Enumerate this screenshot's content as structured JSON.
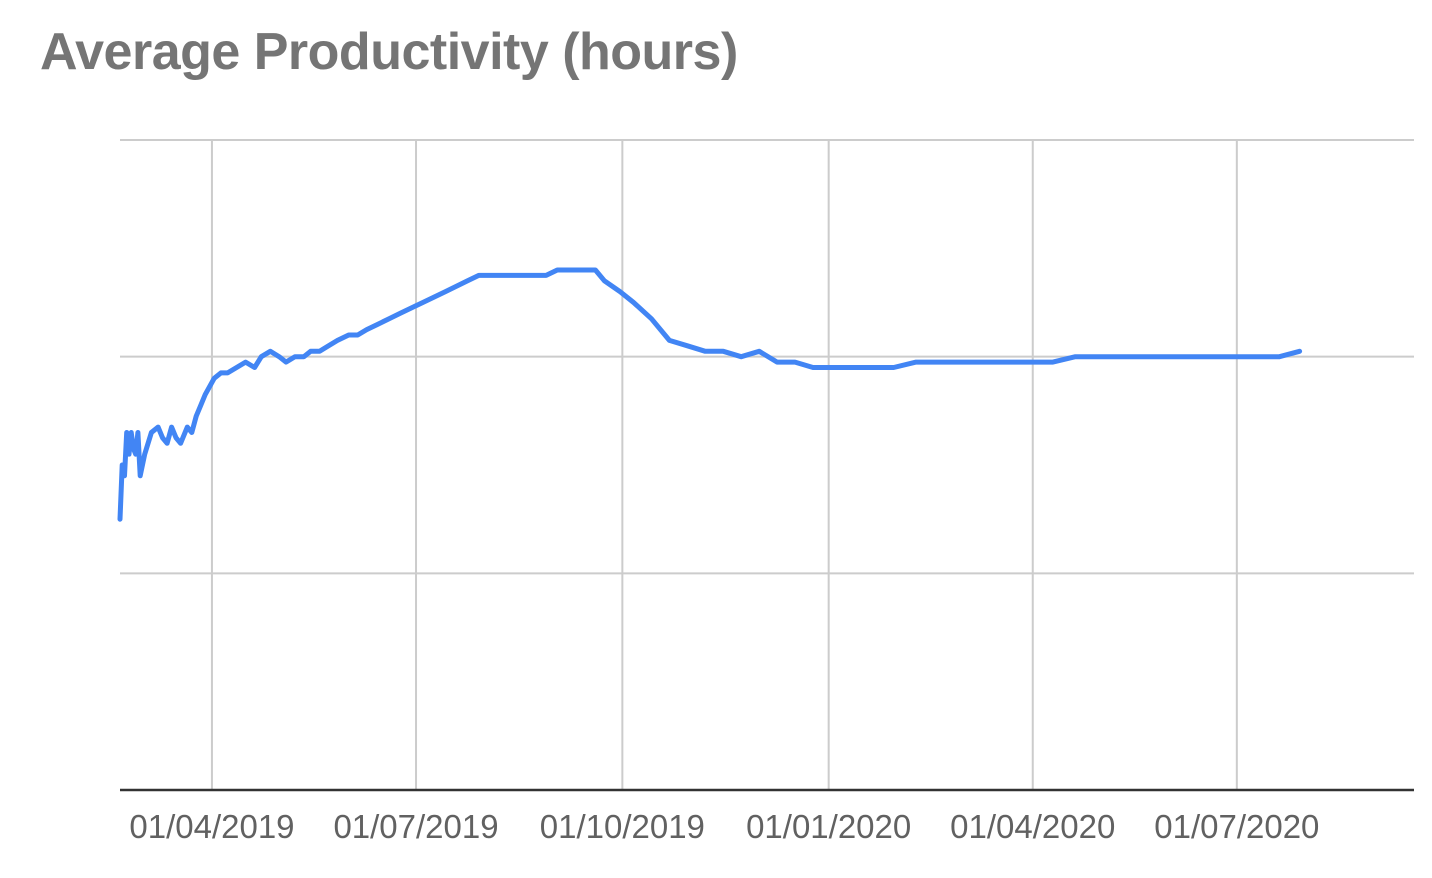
{
  "chart_data": {
    "type": "line",
    "title": "Average Productivity (hours)",
    "xlabel": "",
    "ylabel": "",
    "x_tick_labels": [
      "01/04/2019",
      "01/07/2019",
      "01/10/2019",
      "01/01/2020",
      "01/04/2020",
      "01/07/2020"
    ],
    "x_tick_dates": [
      "2019-04-01",
      "2019-07-01",
      "2019-10-01",
      "2020-01-01",
      "2020-04-01",
      "2020-07-01"
    ],
    "x_range": [
      "2019-02-19",
      "2020-09-18"
    ],
    "y_ticks_visible": false,
    "y_gridlines": 4,
    "grid": true,
    "legend": "none",
    "series": [
      {
        "color": "#4285f4",
        "x": [
          "2019-02-19",
          "2019-02-20",
          "2019-02-21",
          "2019-02-22",
          "2019-02-23",
          "2019-02-24",
          "2019-02-25",
          "2019-02-26",
          "2019-02-27",
          "2019-02-28",
          "2019-03-02",
          "2019-03-05",
          "2019-03-08",
          "2019-03-10",
          "2019-03-12",
          "2019-03-14",
          "2019-03-16",
          "2019-03-18",
          "2019-03-21",
          "2019-03-23",
          "2019-03-25",
          "2019-03-27",
          "2019-03-29",
          "2019-04-02",
          "2019-04-05",
          "2019-04-08",
          "2019-04-12",
          "2019-04-16",
          "2019-04-20",
          "2019-04-23",
          "2019-04-27",
          "2019-05-01",
          "2019-05-04",
          "2019-05-08",
          "2019-05-12",
          "2019-05-15",
          "2019-05-19",
          "2019-05-23",
          "2019-05-27",
          "2019-06-01",
          "2019-06-05",
          "2019-06-09",
          "2019-06-14",
          "2019-06-19",
          "2019-06-24",
          "2019-06-29",
          "2019-07-04",
          "2019-07-09",
          "2019-07-14",
          "2019-07-19",
          "2019-07-24",
          "2019-07-29",
          "2019-08-03",
          "2019-08-08",
          "2019-08-13",
          "2019-08-18",
          "2019-08-23",
          "2019-08-28",
          "2019-09-02",
          "2019-09-07",
          "2019-09-12",
          "2019-09-17",
          "2019-09-19",
          "2019-09-23",
          "2019-09-30",
          "2019-10-06",
          "2019-10-14",
          "2019-10-22",
          "2019-10-30",
          "2019-11-07",
          "2019-11-15",
          "2019-11-23",
          "2019-12-01",
          "2019-12-09",
          "2019-12-17",
          "2019-12-25",
          "2020-01-02",
          "2020-01-10",
          "2020-01-20",
          "2020-01-30",
          "2020-02-09",
          "2020-02-19",
          "2020-02-29",
          "2020-03-10",
          "2020-03-20",
          "2020-03-31",
          "2020-04-10",
          "2020-04-20",
          "2020-04-30",
          "2020-05-10",
          "2020-05-20",
          "2020-05-31",
          "2020-06-10",
          "2020-06-20",
          "2020-06-30",
          "2020-07-10",
          "2020-07-20",
          "2020-07-29"
        ],
        "values": [
          5.0,
          6.0,
          5.8,
          6.6,
          6.2,
          6.6,
          6.3,
          6.2,
          6.6,
          5.8,
          6.2,
          6.6,
          6.7,
          6.5,
          6.4,
          6.7,
          6.5,
          6.4,
          6.7,
          6.6,
          6.9,
          7.1,
          7.3,
          7.6,
          7.7,
          7.7,
          7.8,
          7.9,
          7.8,
          8.0,
          8.1,
          8.0,
          7.9,
          8.0,
          8.0,
          8.1,
          8.1,
          8.2,
          8.3,
          8.4,
          8.4,
          8.5,
          8.6,
          8.7,
          8.8,
          8.9,
          9.0,
          9.1,
          9.2,
          9.3,
          9.4,
          9.5,
          9.5,
          9.5,
          9.5,
          9.5,
          9.5,
          9.5,
          9.6,
          9.6,
          9.6,
          9.6,
          9.6,
          9.4,
          9.2,
          9.0,
          8.7,
          8.3,
          8.2,
          8.1,
          8.1,
          8.0,
          8.1,
          7.9,
          7.9,
          7.8,
          7.8,
          7.8,
          7.8,
          7.8,
          7.9,
          7.9,
          7.9,
          7.9,
          7.9,
          7.9,
          7.9,
          8.0,
          8.0,
          8.0,
          8.0,
          8.0,
          8.0,
          8.0,
          8.0,
          8.0,
          8.0,
          8.1
        ]
      }
    ]
  }
}
